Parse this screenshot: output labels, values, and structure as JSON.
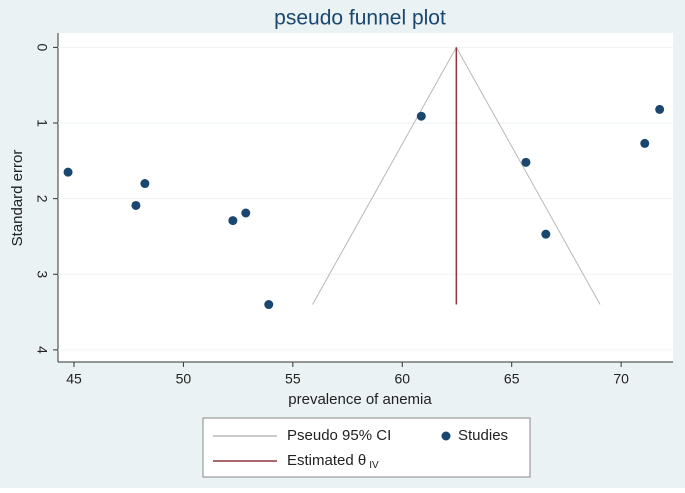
{
  "chart_data": {
    "type": "funnel",
    "title": "pseudo funnel plot",
    "xlabel": "prevalence of anemia",
    "ylabel": "Standard error",
    "xlim": [
      44.27,
      72.37
    ],
    "xticks": [
      45,
      50,
      55,
      60,
      65,
      70
    ],
    "ylim": [
      -0.19,
      4.16
    ],
    "yticks": [
      0,
      1,
      2,
      3,
      4
    ],
    "y_inverted": true,
    "grid": true,
    "series": [
      {
        "name": "Pseudo 95% CI",
        "kind": "line",
        "color": "#b8b8b8",
        "x": [
          55.9,
          62.47,
          69.04
        ],
        "values": [
          3.4,
          0,
          3.4
        ]
      },
      {
        "name": "Studies",
        "kind": "scatter",
        "color": "#1a476f",
        "x": [
          44.73,
          47.83,
          48.24,
          52.26,
          52.85,
          53.9,
          60.87,
          65.65,
          66.56,
          71.08,
          71.76
        ],
        "values": [
          1.65,
          2.09,
          1.8,
          2.29,
          2.19,
          3.4,
          0.91,
          1.52,
          2.47,
          1.27,
          0.82
        ]
      },
      {
        "name": "Estimated θ",
        "name_subscript": "IV",
        "kind": "line",
        "color": "#90353b",
        "x": [
          62.47,
          62.47
        ],
        "values": [
          0,
          3.4
        ]
      }
    ]
  }
}
